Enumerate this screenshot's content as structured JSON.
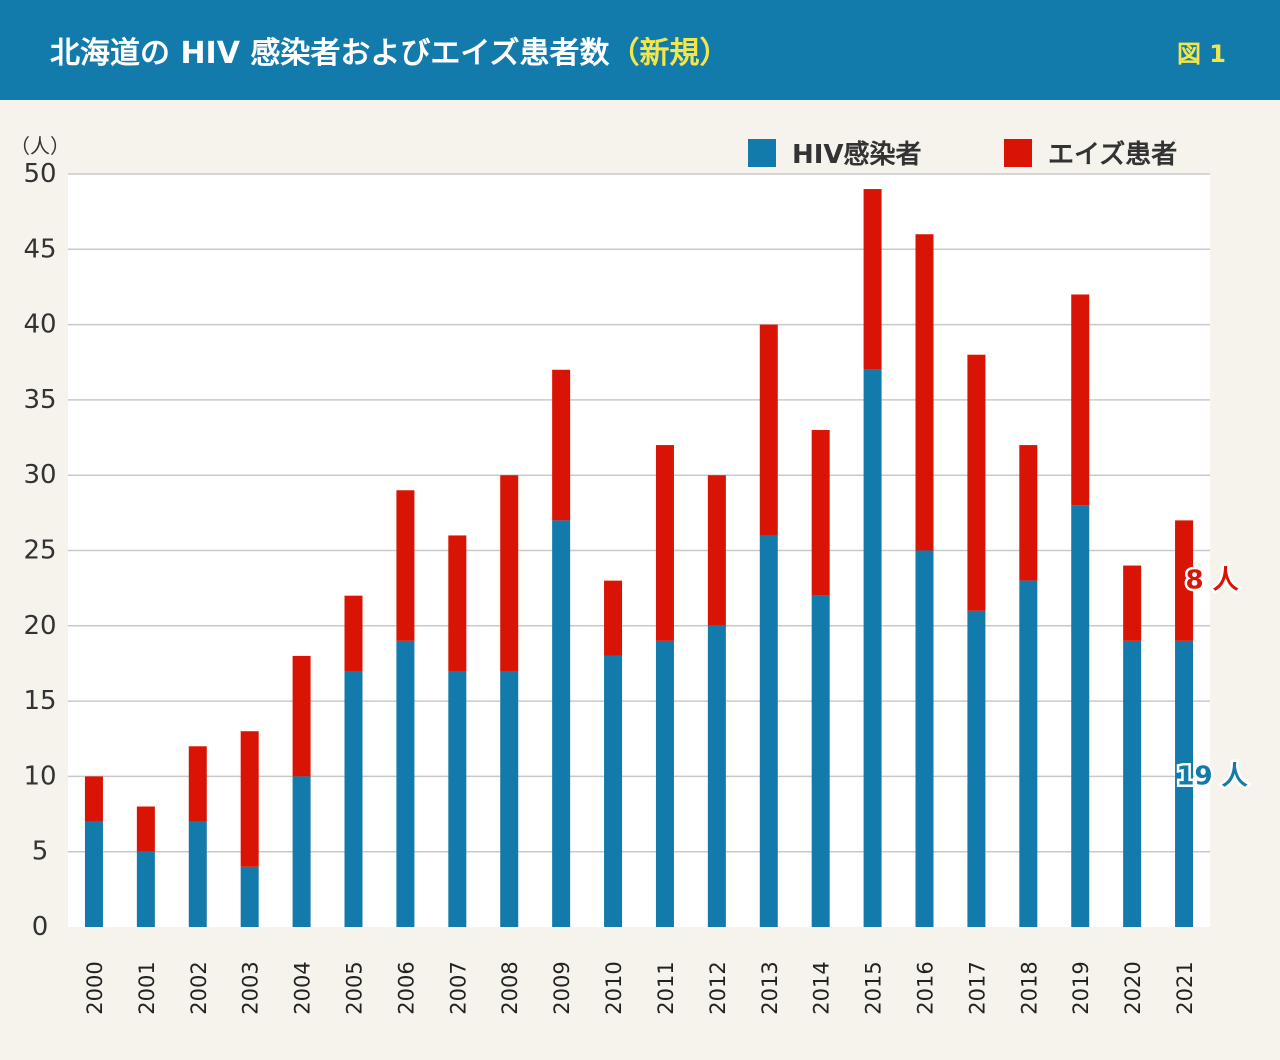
{
  "header": {
    "title_main": "北海道の HIV 感染者およびエイズ患者数",
    "title_sub": "（新規）",
    "figure_label": "図 1"
  },
  "colors": {
    "header_bg": "#137bab",
    "hiv": "#137bab",
    "aids": "#d91405",
    "accent_yellow": "#f2e64a",
    "plot_bg": "#ffffff",
    "page_bg": "#f6f3ec"
  },
  "chart_data": {
    "type": "bar",
    "stacked": true,
    "unit_label": "（人）",
    "ylim": [
      0,
      50
    ],
    "yticks": [
      0,
      5,
      10,
      15,
      20,
      25,
      30,
      35,
      40,
      45,
      50
    ],
    "categories": [
      "2000",
      "2001",
      "2002",
      "2003",
      "2004",
      "2005",
      "2006",
      "2007",
      "2008",
      "2009",
      "2010",
      "2011",
      "2012",
      "2013",
      "2014",
      "2015",
      "2016",
      "2017",
      "2018",
      "2019",
      "2020",
      "2021"
    ],
    "series": [
      {
        "name": "HIV感染者",
        "color": "#137bab",
        "values": [
          7,
          5,
          7,
          4,
          10,
          17,
          19,
          17,
          17,
          27,
          18,
          19,
          20,
          26,
          22,
          37,
          25,
          21,
          23,
          28,
          19,
          19
        ]
      },
      {
        "name": "エイズ患者",
        "color": "#d91405",
        "values": [
          3,
          3,
          5,
          9,
          8,
          5,
          10,
          9,
          13,
          10,
          5,
          13,
          10,
          14,
          11,
          12,
          21,
          17,
          9,
          14,
          5,
          8
        ]
      }
    ],
    "legend_position": "top-right",
    "grid": true,
    "annotations": [
      {
        "category": "2021",
        "series": "HIV感染者",
        "text": "19 人"
      },
      {
        "category": "2021",
        "series": "エイズ患者",
        "text": "8 人"
      }
    ]
  }
}
